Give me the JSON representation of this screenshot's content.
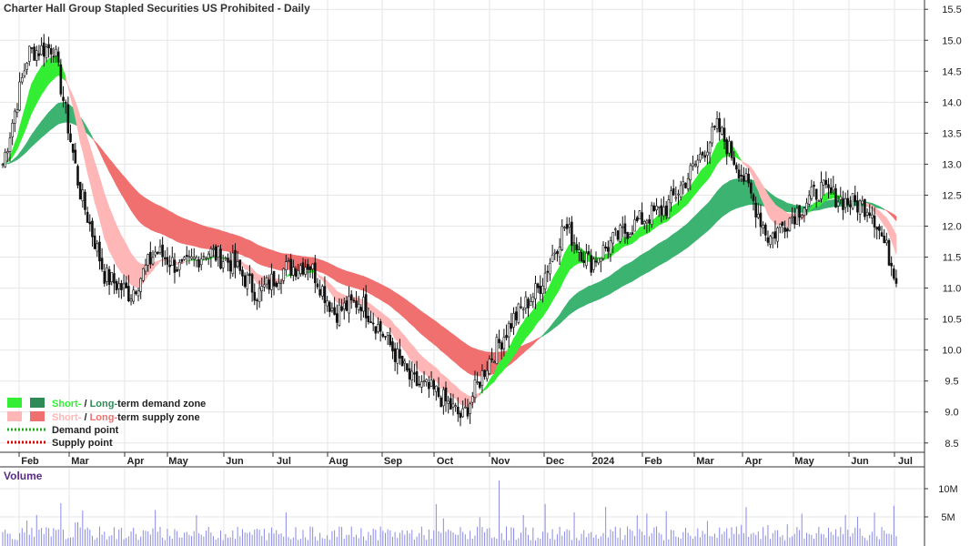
{
  "chart_data": {
    "type": "candlestick",
    "title": "Charter Hall Group Stapled Securities US Prohibited - Daily",
    "volume_label": "Volume",
    "ylim": [
      8.35,
      15.65
    ],
    "y_ticks": [
      "15.5",
      "15.0",
      "14.5",
      "14.0",
      "13.5",
      "13.0",
      "12.5",
      "12.0",
      "11.5",
      "11.0",
      "10.5",
      "10.0",
      "9.5",
      "9.0",
      "8.5"
    ],
    "volume_ticks": [
      "10M",
      "5M"
    ],
    "months": [
      "Feb",
      "Mar",
      "Apr",
      "May",
      "Jun",
      "Jul",
      "Aug",
      "Sep",
      "Oct",
      "Nov",
      "Dec",
      "2024",
      "Feb",
      "Mar",
      "Apr",
      "May",
      "Jun",
      "Jul"
    ],
    "price_path": [
      [
        "Jan 2023",
        13.0
      ],
      [
        "Feb",
        14.8
      ],
      [
        "Feb-mid",
        14.9
      ],
      [
        "Mar",
        12.6
      ],
      [
        "Mar-mid",
        11.2
      ],
      [
        "Apr",
        10.9
      ],
      [
        "Apr-mid",
        11.6
      ],
      [
        "May",
        11.3
      ],
      [
        "May-mid",
        11.6
      ],
      [
        "Jun",
        11.4
      ],
      [
        "Jun-mid",
        10.9
      ],
      [
        "Jul",
        11.3
      ],
      [
        "Jul-mid",
        11.4
      ],
      [
        "Aug",
        10.6
      ],
      [
        "Aug-mid",
        10.8
      ],
      [
        "Sep",
        10.2
      ],
      [
        "Sep-mid",
        9.5
      ],
      [
        "Oct",
        9.3
      ],
      [
        "Oct-mid",
        8.9
      ],
      [
        "Nov",
        9.8
      ],
      [
        "Nov-mid",
        10.5
      ],
      [
        "Dec",
        11.0
      ],
      [
        "Dec-mid",
        12.0
      ],
      [
        "2024",
        11.4
      ],
      [
        "Jan-mid",
        11.8
      ],
      [
        "Feb",
        12.1
      ],
      [
        "Feb-mid",
        12.3
      ],
      [
        "Mar",
        12.9
      ],
      [
        "Mar-mid",
        13.6
      ],
      [
        "Apr",
        12.8
      ],
      [
        "Apr-mid",
        11.8
      ],
      [
        "May",
        12.2
      ],
      [
        "May-mid",
        12.6
      ],
      [
        "Jun",
        12.4
      ],
      [
        "Jun-mid",
        12.3
      ],
      [
        "Jul",
        11.2
      ]
    ],
    "legend": [
      {
        "short": "Short-",
        "sep": " / ",
        "long": "Long-",
        "rest": "term demand zone",
        "short_color": "#33ee33",
        "long_color": "#2e8b57",
        "kind": "zone"
      },
      {
        "short": "Short-",
        "sep": " / ",
        "long": "Long-",
        "rest": "term supply zone",
        "short_color": "#ffb6b6",
        "long_color": "#f07070",
        "kind": "zone"
      },
      {
        "text": "Demand point",
        "color": "#22aa22",
        "kind": "point"
      },
      {
        "text": "Supply point",
        "color": "#dd0000",
        "kind": "point"
      }
    ],
    "colors": {
      "short_demand": "#33ee33",
      "long_demand": "#3cb371",
      "short_supply": "#ffb6b6",
      "long_supply": "#f07070",
      "orange": "#ff7020",
      "volume_bar": "#8a8ae6",
      "grid": "#e6e6e6"
    },
    "grid": true
  }
}
